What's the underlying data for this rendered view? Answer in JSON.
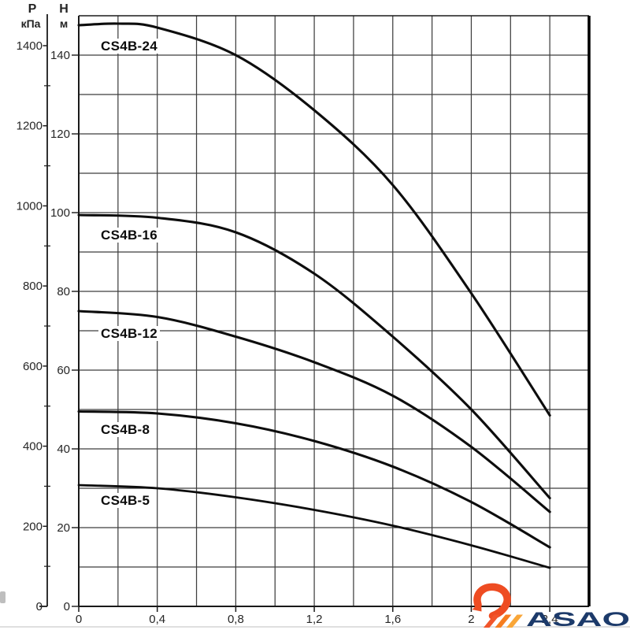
{
  "chart_data": {
    "type": "line",
    "title": "",
    "x_axis": {
      "label": "",
      "range": [
        0,
        2.6
      ],
      "grid_step": 0.2,
      "major_ticks": [
        0,
        0.4,
        0.8,
        1.2,
        1.6,
        2.0,
        2.4
      ],
      "tick_labels": [
        "0",
        "0,4",
        "0,8",
        "1,2",
        "1,6",
        "2",
        "2,4"
      ]
    },
    "y_axis_head": {
      "name": "H",
      "unit": "м",
      "range": [
        0,
        150
      ],
      "grid_step": 10,
      "label_step": 20,
      "tick_values": [
        140,
        120,
        100,
        80,
        60,
        40,
        20,
        0
      ],
      "tick_labels": [
        "140",
        "120",
        "100",
        "80",
        "60",
        "40",
        "20",
        "0"
      ]
    },
    "y_axis_pressure": {
      "name": "P",
      "unit": "кПа",
      "range": [
        0,
        1450
      ],
      "label_step": 200,
      "minor_step": 100,
      "tick_values": [
        1400,
        1200,
        1000,
        800,
        600,
        400,
        200,
        0
      ],
      "tick_labels": [
        "1400",
        "1200",
        "1000",
        "800",
        "600",
        "400",
        "200",
        "0"
      ]
    },
    "series": [
      {
        "name": "CS4B-24",
        "points": [
          [
            0,
            147.6
          ],
          [
            0.2,
            148
          ],
          [
            0.4,
            147
          ],
          [
            0.8,
            140
          ],
          [
            1.2,
            126
          ],
          [
            1.6,
            107
          ],
          [
            2.0,
            79.5
          ],
          [
            2.4,
            48.5
          ]
        ],
        "label_pos": {
          "x": 125,
          "y": 49
        }
      },
      {
        "name": "CS4B-16",
        "points": [
          [
            0,
            99.4
          ],
          [
            0.4,
            98.7
          ],
          [
            0.8,
            95
          ],
          [
            1.2,
            84.5
          ],
          [
            1.6,
            68.5
          ],
          [
            2.0,
            50
          ],
          [
            2.4,
            27.5
          ]
        ],
        "label_pos": {
          "x": 125,
          "y": 289
        }
      },
      {
        "name": "CS4B-12",
        "points": [
          [
            0,
            75
          ],
          [
            0.4,
            73.5
          ],
          [
            0.8,
            68.5
          ],
          [
            1.2,
            62
          ],
          [
            1.6,
            53.5
          ],
          [
            2.0,
            40.5
          ],
          [
            2.4,
            24
          ]
        ],
        "label_pos": {
          "x": 125,
          "y": 414
        }
      },
      {
        "name": "CS4B-8",
        "points": [
          [
            0,
            49.5
          ],
          [
            0.4,
            49
          ],
          [
            0.8,
            46.5
          ],
          [
            1.2,
            42
          ],
          [
            1.6,
            35.5
          ],
          [
            2.0,
            26.5
          ],
          [
            2.4,
            15
          ]
        ],
        "label_pos": {
          "x": 125,
          "y": 536
        }
      },
      {
        "name": "CS4B-5",
        "points": [
          [
            0,
            30.8
          ],
          [
            0.4,
            30
          ],
          [
            0.8,
            27.7
          ],
          [
            1.2,
            24.5
          ],
          [
            1.6,
            20.5
          ],
          [
            2.0,
            15.5
          ],
          [
            2.4,
            9.8
          ]
        ],
        "label_pos": {
          "x": 125,
          "y": 626
        }
      }
    ],
    "grid": true,
    "styles": {
      "curve_color": "#0d0d0d",
      "grid_color": "#3f3f3f",
      "axis_color": "#1a1a1a",
      "text_color": "#262626"
    }
  },
  "logo": {
    "text": "ASAO",
    "text_color": "#1c3a6a",
    "icon_curl_color": "#ee4c22",
    "icon_stripe_colors": [
      "#f1552b",
      "#f67d1e",
      "#f9a638"
    ]
  }
}
